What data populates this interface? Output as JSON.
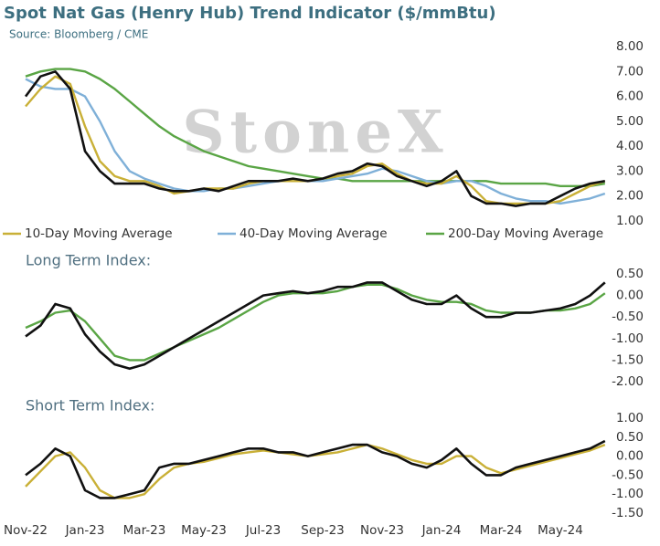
{
  "chart_data": [
    {
      "type": "line",
      "title": "Spot Nat Gas (Henry Hub) Trend Indicator ($/mmBtu)",
      "subtitle": "Source: Bloomberg / CME",
      "watermark": "StoneX",
      "ylim": [
        1,
        8
      ],
      "yticks": [
        {
          "value": 1,
          "label": "1.00"
        },
        {
          "value": 2,
          "label": "2.00"
        },
        {
          "value": 3,
          "label": "3.00"
        },
        {
          "value": 4,
          "label": "4.00"
        },
        {
          "value": 5,
          "label": "5.00"
        },
        {
          "value": 6,
          "label": "6.00"
        },
        {
          "value": 7,
          "label": "7.00"
        },
        {
          "value": 8,
          "label": "8.00"
        }
      ],
      "series": [
        {
          "color": "#111111",
          "values": [
            6.0,
            6.8,
            7.0,
            6.3,
            3.8,
            3.0,
            2.5,
            2.5,
            2.5,
            2.3,
            2.2,
            2.2,
            2.3,
            2.2,
            2.4,
            2.6,
            2.6,
            2.6,
            2.7,
            2.6,
            2.7,
            2.9,
            3.0,
            3.3,
            3.2,
            2.8,
            2.6,
            2.4,
            2.6,
            3.0,
            2.0,
            1.7,
            1.7,
            1.6,
            1.7,
            1.7,
            2.0,
            2.3,
            2.5,
            2.6
          ]
        },
        {
          "name": "10-Day Moving Average",
          "color": "#c9b037",
          "values": [
            5.6,
            6.3,
            6.8,
            6.5,
            4.8,
            3.4,
            2.8,
            2.6,
            2.6,
            2.4,
            2.1,
            2.2,
            2.3,
            2.3,
            2.3,
            2.5,
            2.6,
            2.6,
            2.6,
            2.6,
            2.7,
            2.8,
            2.9,
            3.2,
            3.3,
            2.9,
            2.6,
            2.5,
            2.5,
            2.8,
            2.4,
            1.8,
            1.7,
            1.7,
            1.7,
            1.7,
            1.8,
            2.1,
            2.4,
            2.6
          ]
        },
        {
          "name": "40-Day Moving Average",
          "color": "#7fb0d8",
          "values": [
            6.7,
            6.4,
            6.3,
            6.3,
            6.0,
            5.0,
            3.8,
            3.0,
            2.7,
            2.5,
            2.3,
            2.2,
            2.2,
            2.3,
            2.3,
            2.4,
            2.5,
            2.6,
            2.6,
            2.6,
            2.6,
            2.7,
            2.8,
            2.9,
            3.1,
            3.0,
            2.8,
            2.6,
            2.5,
            2.6,
            2.6,
            2.4,
            2.1,
            1.9,
            1.8,
            1.8,
            1.7,
            1.8,
            1.9,
            2.1
          ]
        },
        {
          "name": "200-Day Moving Average",
          "color": "#5aa545",
          "values": [
            6.8,
            7.0,
            7.1,
            7.1,
            7.0,
            6.7,
            6.3,
            5.8,
            5.3,
            4.8,
            4.4,
            4.1,
            3.8,
            3.6,
            3.4,
            3.2,
            3.1,
            3.0,
            2.9,
            2.8,
            2.7,
            2.7,
            2.6,
            2.6,
            2.6,
            2.6,
            2.6,
            2.6,
            2.6,
            2.6,
            2.6,
            2.6,
            2.5,
            2.5,
            2.5,
            2.5,
            2.4,
            2.4,
            2.4,
            2.5
          ]
        }
      ]
    },
    {
      "type": "line",
      "title": "Long Term Index:",
      "ylim": [
        -2,
        0.5
      ],
      "yticks": [
        {
          "value": -2,
          "label": "-2.00"
        },
        {
          "value": -1.5,
          "label": "-1.50"
        },
        {
          "value": -1,
          "label": "-1.00"
        },
        {
          "value": -0.5,
          "label": "-0.50"
        },
        {
          "value": 0,
          "label": "0.00"
        },
        {
          "value": 0.5,
          "label": "0.50"
        }
      ],
      "series": [
        {
          "color": "#111111",
          "values": [
            -0.95,
            -0.7,
            -0.2,
            -0.3,
            -0.9,
            -1.3,
            -1.6,
            -1.7,
            -1.6,
            -1.4,
            -1.2,
            -1.0,
            -0.8,
            -0.6,
            -0.4,
            -0.2,
            0.0,
            0.05,
            0.1,
            0.05,
            0.1,
            0.2,
            0.2,
            0.3,
            0.3,
            0.1,
            -0.1,
            -0.2,
            -0.2,
            0.0,
            -0.3,
            -0.5,
            -0.5,
            -0.4,
            -0.4,
            -0.35,
            -0.3,
            -0.2,
            0.0,
            0.3
          ]
        },
        {
          "color": "#5aa545",
          "values": [
            -0.75,
            -0.6,
            -0.4,
            -0.35,
            -0.6,
            -1.0,
            -1.4,
            -1.5,
            -1.5,
            -1.35,
            -1.2,
            -1.05,
            -0.9,
            -0.75,
            -0.55,
            -0.35,
            -0.15,
            0.0,
            0.05,
            0.05,
            0.05,
            0.1,
            0.2,
            0.25,
            0.25,
            0.15,
            0.0,
            -0.1,
            -0.15,
            -0.15,
            -0.2,
            -0.35,
            -0.4,
            -0.4,
            -0.4,
            -0.35,
            -0.35,
            -0.3,
            -0.2,
            0.05
          ]
        }
      ]
    },
    {
      "type": "line",
      "title": "Short Term Index:",
      "categories": [
        "Nov-22",
        null,
        null,
        null,
        "Jan-23",
        null,
        null,
        null,
        "Mar-23",
        null,
        null,
        null,
        "May-23",
        null,
        null,
        null,
        "Jul-23",
        null,
        null,
        null,
        "Sep-23",
        null,
        null,
        null,
        "Nov-23",
        null,
        null,
        null,
        "Jan-24",
        null,
        null,
        null,
        "Mar-24",
        null,
        null,
        null,
        "May-24",
        null,
        null,
        null
      ],
      "ylim": [
        -1.5,
        1
      ],
      "yticks": [
        {
          "value": -1.5,
          "label": "-1.50"
        },
        {
          "value": -1,
          "label": "-1.00"
        },
        {
          "value": -0.5,
          "label": "-0.50"
        },
        {
          "value": 0,
          "label": "0.00"
        },
        {
          "value": 0.5,
          "label": "0.50"
        },
        {
          "value": 1,
          "label": "1.00"
        }
      ],
      "series": [
        {
          "color": "#111111",
          "values": [
            -0.5,
            -0.2,
            0.2,
            0.0,
            -0.9,
            -1.1,
            -1.1,
            -1.0,
            -0.9,
            -0.3,
            -0.2,
            -0.2,
            -0.1,
            0.0,
            0.1,
            0.2,
            0.2,
            0.1,
            0.1,
            0.0,
            0.1,
            0.2,
            0.3,
            0.3,
            0.1,
            0.0,
            -0.2,
            -0.3,
            -0.1,
            0.2,
            -0.2,
            -0.5,
            -0.5,
            -0.3,
            -0.2,
            -0.1,
            0.0,
            0.1,
            0.2,
            0.4
          ]
        },
        {
          "color": "#c9b037",
          "values": [
            -0.8,
            -0.4,
            0.0,
            0.1,
            -0.3,
            -0.9,
            -1.1,
            -1.1,
            -1.0,
            -0.6,
            -0.3,
            -0.2,
            -0.15,
            -0.05,
            0.05,
            0.1,
            0.15,
            0.1,
            0.05,
            0.0,
            0.05,
            0.1,
            0.2,
            0.3,
            0.2,
            0.05,
            -0.1,
            -0.2,
            -0.2,
            0.0,
            0.0,
            -0.3,
            -0.45,
            -0.35,
            -0.25,
            -0.15,
            -0.05,
            0.05,
            0.15,
            0.3
          ]
        }
      ]
    }
  ]
}
